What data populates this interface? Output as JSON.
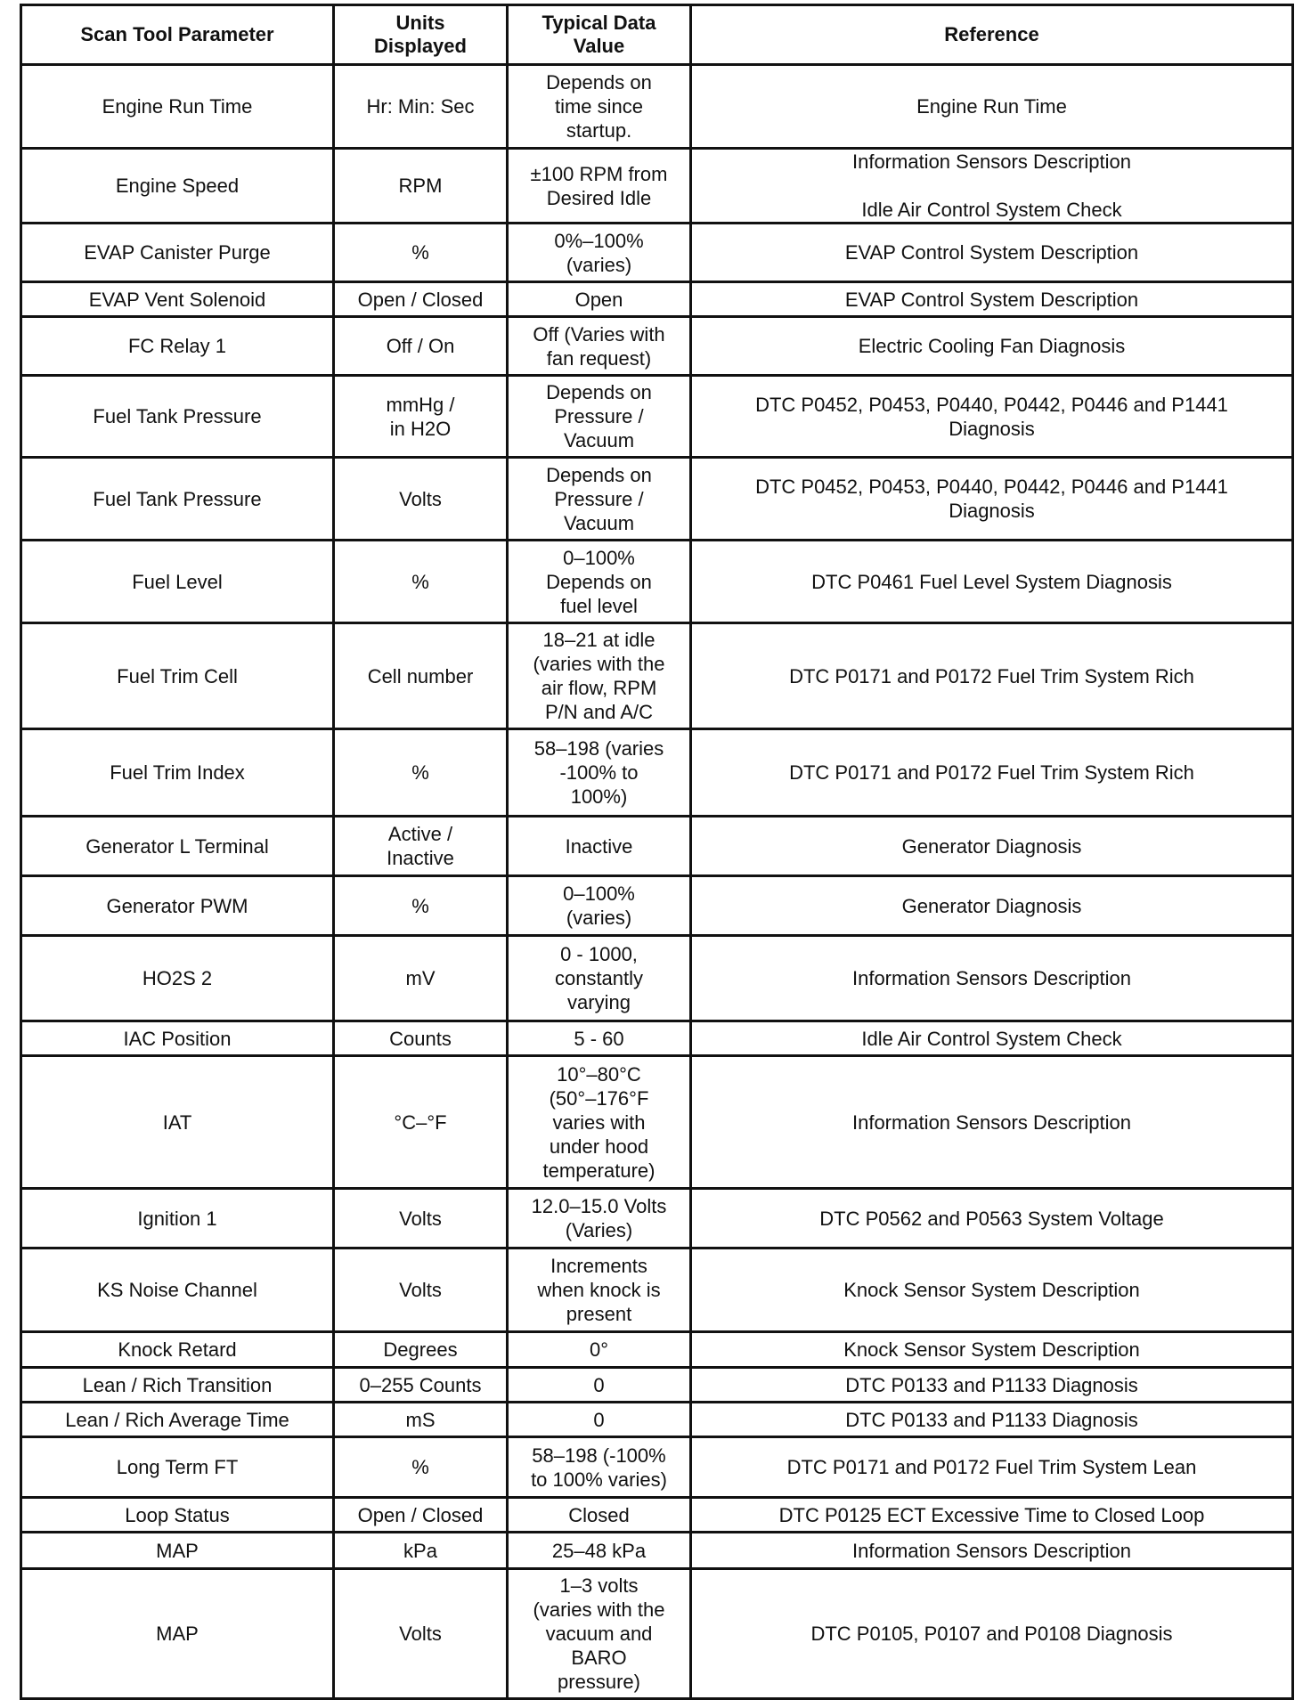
{
  "headers": [
    "Scan Tool Parameter",
    "Units\nDisplayed",
    "Typical Data\nValue",
    "Reference"
  ],
  "rows": [
    [
      "Engine Run Time",
      "Hr: Min: Sec",
      "Depends on\ntime since\nstartup.",
      "Engine Run Time"
    ],
    [
      "Engine Speed",
      "RPM",
      "±100 RPM from\nDesired Idle",
      "Information Sensors Description\n\nIdle Air Control System Check"
    ],
    [
      "EVAP Canister Purge",
      "%",
      "0%–100%\n(varies)",
      "EVAP Control System Description"
    ],
    [
      "EVAP Vent Solenoid",
      "Open / Closed",
      "Open",
      "EVAP Control System Description"
    ],
    [
      "FC Relay 1",
      "Off / On",
      "Off (Varies with\nfan request)",
      "Electric Cooling Fan Diagnosis"
    ],
    [
      "Fuel Tank Pressure",
      "mmHg /\nin H2O",
      "Depends on\nPressure /\nVacuum",
      "DTC P0452, P0453, P0440, P0442, P0446 and P1441\nDiagnosis"
    ],
    [
      "Fuel Tank Pressure",
      "Volts",
      "Depends on\nPressure /\nVacuum",
      "DTC P0452, P0453, P0440, P0442, P0446 and P1441\nDiagnosis"
    ],
    [
      "Fuel Level",
      "%",
      "0–100%\nDepends on\nfuel level",
      "DTC P0461 Fuel Level System Diagnosis"
    ],
    [
      "Fuel Trim Cell",
      "Cell number",
      "18–21 at idle\n(varies with the\nair flow, RPM\nP/N and A/C",
      "DTC P0171 and P0172 Fuel Trim System Rich"
    ],
    [
      "Fuel Trim Index",
      "%",
      "58–198 (varies\n-100% to\n100%)",
      "DTC P0171 and P0172 Fuel Trim System Rich"
    ],
    [
      "Generator L Terminal",
      "Active /\nInactive",
      "Inactive",
      "Generator Diagnosis"
    ],
    [
      "Generator PWM",
      "%",
      "0–100%\n(varies)",
      "Generator Diagnosis"
    ],
    [
      "HO2S 2",
      "mV",
      "0 - 1000,\nconstantly\nvarying",
      "Information Sensors Description"
    ],
    [
      "IAC Position",
      "Counts",
      "5 - 60",
      "Idle Air Control System Check"
    ],
    [
      "IAT",
      "°C–°F",
      "10°–80°C\n(50°–176°F\nvaries with\nunder hood\ntemperature)",
      "Information Sensors Description"
    ],
    [
      "Ignition 1",
      "Volts",
      "12.0–15.0 Volts\n(Varies)",
      "DTC P0562 and P0563 System Voltage"
    ],
    [
      "KS Noise Channel",
      "Volts",
      "Increments\nwhen knock is\npresent",
      "Knock Sensor System Description"
    ],
    [
      "Knock Retard",
      "Degrees",
      "0°",
      "Knock Sensor System Description"
    ],
    [
      "Lean / Rich Transition",
      "0–255 Counts",
      "0",
      "DTC P0133 and P1133 Diagnosis"
    ],
    [
      "Lean / Rich Average Time",
      "mS",
      "0",
      "DTC P0133 and P1133 Diagnosis"
    ],
    [
      "Long Term FT",
      "%",
      "58–198 (-100%\nto 100% varies)",
      "DTC P0171 and P0172 Fuel Trim System Lean"
    ],
    [
      "Loop Status",
      "Open / Closed",
      "Closed",
      "DTC P0125 ECT Excessive Time to Closed Loop"
    ],
    [
      "MAP",
      "kPa",
      "25–48 kPa",
      "Information Sensors Description"
    ],
    [
      "MAP",
      "Volts",
      "1–3 volts\n(varies with the\nvacuum and\nBARO\npressure)",
      "DTC P0105, P0107 and P0108 Diagnosis"
    ]
  ]
}
